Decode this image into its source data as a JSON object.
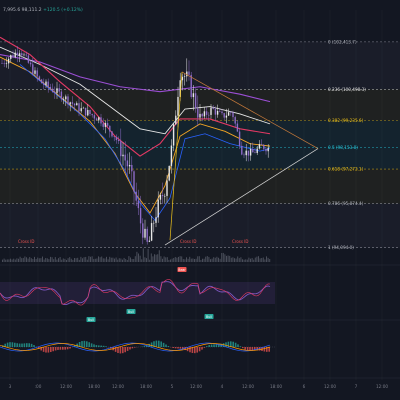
{
  "header": {
    "open_partial": "7,995.6",
    "close_partial": "98,111.2",
    "change": "+120.5 (+0.12%)"
  },
  "chart_data": {
    "type": "candlestick",
    "y_range": [
      93800,
      103500
    ],
    "fib": [
      {
        "label": "0 (102,413.7)",
        "value": 102413.7,
        "color": "#b2b5be"
      },
      {
        "label": "0.236 (100,498.3)",
        "value": 100498.3,
        "color": "#e0e0e0"
      },
      {
        "label": "0.382 (99,235.6)",
        "value": 99235.6,
        "color": "#f0c419"
      },
      {
        "label": "0.5 (98,153.8)",
        "value": 98153.8,
        "color": "#26c6da"
      },
      {
        "label": "0.618 (97,272.1)",
        "value": 97272.1,
        "color": "#f0c419"
      },
      {
        "label": "0.786 (95,874.4)",
        "value": 95874.4,
        "color": "#b2b5be"
      },
      {
        "label": "1 (94,094.0)",
        "value": 94094.0,
        "color": "#b2b5be"
      }
    ],
    "x_labels": [
      "3",
      ":00",
      "12:00",
      "18:00",
      "12:00",
      "18:00",
      "5",
      "12:00",
      "4",
      "12:00",
      "18:00",
      "6",
      "12:00",
      "7",
      "12:00",
      "8"
    ],
    "volume_labels": [
      "Cross ID",
      "Cross ID",
      "Cross ID"
    ],
    "osc_labels": [
      "Bear",
      "Bull",
      "Bull",
      "Bull"
    ]
  }
}
